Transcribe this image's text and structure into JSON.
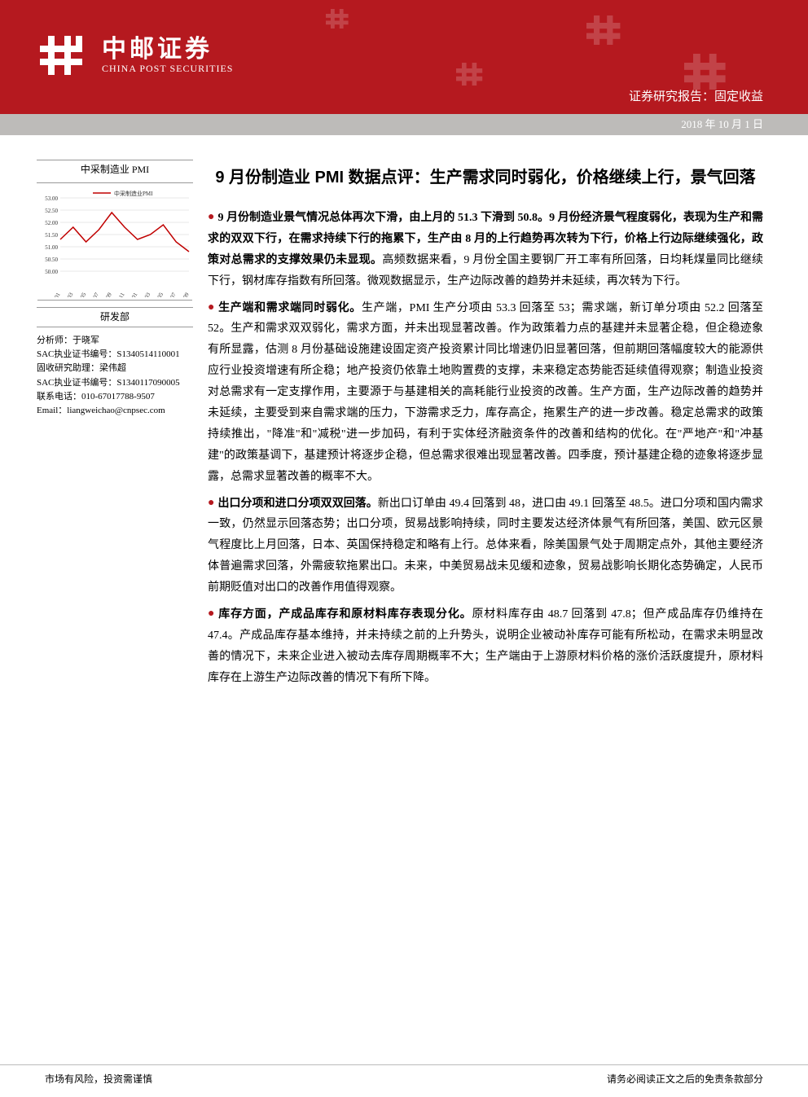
{
  "header": {
    "brand_cn": "中邮证券",
    "brand_en": "CHINA POST SECURITIES",
    "report_line": "证券研究报告：固定收益",
    "date": "2018 年 10 月 1 日",
    "brand_color": "#b5191f"
  },
  "sidebar": {
    "chart_title": "中采制造业 PMI",
    "chart": {
      "type": "line",
      "series_label": "中采制造业PMI",
      "series_color": "#c00000",
      "x_labels": [
        "2017-01",
        "2017-03",
        "2017-05",
        "2017-07",
        "2017-09",
        "2017-11",
        "2018-01",
        "2018-03",
        "2018-05",
        "2018-07",
        "2018-09"
      ],
      "y": [
        51.3,
        51.8,
        51.2,
        51.7,
        52.4,
        51.8,
        51.3,
        51.5,
        51.9,
        51.2,
        50.8
      ],
      "ylim": [
        50.0,
        53.0
      ],
      "ytick_step": 0.5,
      "grid_color": "#d0d0d0",
      "background_color": "#ffffff",
      "axis_fontsize": 7,
      "line_width": 1.5
    },
    "dept": "研发部",
    "analyst_label": "分析师：",
    "analyst_name": "于晓军",
    "sac1_label": "SAC执业证书编号：",
    "sac1_value": "S1340514110001",
    "assistant_label": "固收研究助理：",
    "assistant_name": "梁伟超",
    "sac2_label": "SAC执业证书编号：",
    "sac2_value": "S1340117090005",
    "phone_label": "联系电话：",
    "phone_value": "010-67017788-9507",
    "email_label": "Email：",
    "email_value": "liangweichao@cnpsec.com"
  },
  "main": {
    "title": "9 月份制造业 PMI 数据点评：生产需求同时弱化，价格继续上行，景气回落",
    "bullets": [
      {
        "bold": "9 月份制造业景气情况总体再次下滑，由上月的 51.3 下滑到 50.8。9 月份经济景气程度弱化，表现为生产和需求的双双下行，在需求持续下行的拖累下，生产由 8 月的上行趋势再次转为下行，价格上行边际继续强化，政策对总需求的支撑效果仍未显现。",
        "rest": "高频数据来看，9 月份全国主要钢厂开工率有所回落，日均耗煤量同比继续下行，钢材库存指数有所回落。微观数据显示，生产边际改善的趋势并未延续，再次转为下行。"
      },
      {
        "bold": "生产端和需求端同时弱化。",
        "rest": "生产端，PMI 生产分项由 53.3 回落至 53；需求端，新订单分项由 52.2 回落至 52。生产和需求双双弱化，需求方面，并未出现显著改善。作为政策着力点的基建并未显著企稳，但企稳迹象有所显露，估测 8 月份基础设施建设固定资产投资累计同比增速仍旧显著回落，但前期回落幅度较大的能源供应行业投资增速有所企稳；地产投资仍依靠土地购置费的支撑，未来稳定态势能否延续值得观察；制造业投资对总需求有一定支撑作用，主要源于与基建相关的高耗能行业投资的改善。生产方面，生产边际改善的趋势并未延续，主要受到来自需求端的压力，下游需求乏力，库存高企，拖累生产的进一步改善。稳定总需求的政策持续推出，\"降准\"和\"减税\"进一步加码，有利于实体经济融资条件的改善和结构的优化。在\"严地产\"和\"冲基建\"的政策基调下，基建预计将逐步企稳，但总需求很难出现显著改善。四季度，预计基建企稳的迹象将逐步显露，总需求显著改善的概率不大。"
      },
      {
        "bold": "出口分项和进口分项双双回落。",
        "rest": "新出口订单由 49.4 回落到 48，进口由 49.1 回落至 48.5。进口分项和国内需求一致，仍然显示回落态势；出口分项，贸易战影响持续，同时主要发达经济体景气有所回落，美国、欧元区景气程度比上月回落，日本、英国保持稳定和略有上行。总体来看，除美国景气处于周期定点外，其他主要经济体普遍需求回落，外需疲软拖累出口。未来，中美贸易战未见缓和迹象，贸易战影响长期化态势确定，人民币前期贬值对出口的改善作用值得观察。"
      },
      {
        "bold": "库存方面，产成品库存和原材料库存表现分化。",
        "rest": "原材料库存由 48.7 回落到 47.8；但产成品库存仍维持在 47.4。产成品库存基本维持，并未持续之前的上升势头，说明企业被动补库存可能有所松动，在需求未明显改善的情况下，未来企业进入被动去库存周期概率不大；生产端由于上游原材料价格的涨价活跃度提升，原材料库存在上游生产边际改善的情况下有所下降。"
      }
    ]
  },
  "footer": {
    "left": "市场有风险，投资需谨慎",
    "right": "请务必阅读正文之后的免责条款部分"
  }
}
